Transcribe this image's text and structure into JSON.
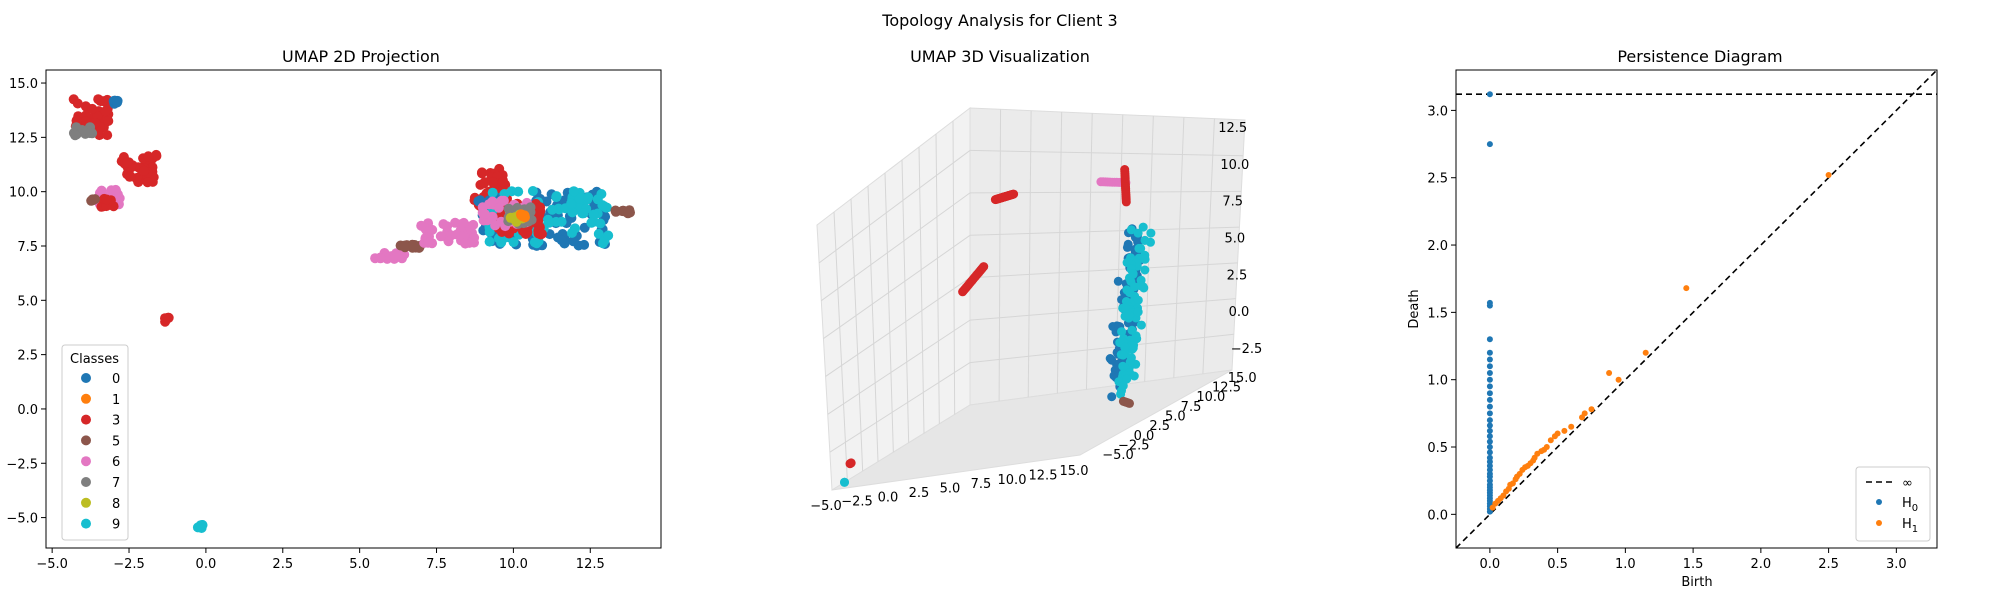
{
  "figure": {
    "suptitle": "Topology Analysis for Client 3"
  },
  "class_colors": {
    "0": "#1f77b4",
    "1": "#ff7f0e",
    "3": "#d62728",
    "5": "#8c564b",
    "6": "#e377c2",
    "7": "#7f7f7f",
    "8": "#bcbd22",
    "9": "#17becf"
  },
  "chart_data": [
    {
      "type": "scatter",
      "title": "UMAP 2D Projection",
      "xlabel": "",
      "ylabel": "",
      "xlim": [
        -5.2,
        14.8
      ],
      "ylim": [
        -6.4,
        15.6
      ],
      "xticks": [
        -5.0,
        -2.5,
        0.0,
        2.5,
        5.0,
        7.5,
        10.0,
        12.5
      ],
      "yticks": [
        -5.0,
        -2.5,
        0.0,
        2.5,
        5.0,
        7.5,
        10.0,
        12.5,
        15.0
      ],
      "grid": false,
      "legend": {
        "title": "Classes",
        "position": "lower-left",
        "entries": [
          "0",
          "1",
          "3",
          "5",
          "6",
          "7",
          "8",
          "9"
        ]
      },
      "clusters": [
        {
          "class": "3",
          "x": [
            -4.3,
            -3.1
          ],
          "y": [
            12.5,
            14.4
          ]
        },
        {
          "class": "7",
          "x": [
            -4.3,
            -3.7
          ],
          "y": [
            12.6,
            13.0
          ]
        },
        {
          "class": "0",
          "x": [
            -3.0,
            -2.8
          ],
          "y": [
            13.9,
            14.2
          ]
        },
        {
          "class": "3",
          "x": [
            -2.8,
            -1.6
          ],
          "y": [
            10.4,
            11.7
          ]
        },
        {
          "class": "6",
          "x": [
            -3.5,
            -2.8
          ],
          "y": [
            9.4,
            10.1
          ]
        },
        {
          "class": "3",
          "x": [
            -3.4,
            -3.0
          ],
          "y": [
            9.3,
            9.7
          ]
        },
        {
          "class": "5",
          "x": [
            -3.8,
            -3.6
          ],
          "y": [
            9.5,
            9.7
          ]
        },
        {
          "class": "3",
          "x": [
            -1.4,
            -1.2
          ],
          "y": [
            4.0,
            4.2
          ]
        },
        {
          "class": "9",
          "x": [
            -0.3,
            -0.1
          ],
          "y": [
            -5.5,
            -5.3
          ]
        },
        {
          "class": "6",
          "x": [
            5.5,
            6.5
          ],
          "y": [
            6.9,
            7.2
          ]
        },
        {
          "class": "5",
          "x": [
            6.3,
            7.0
          ],
          "y": [
            7.4,
            7.6
          ]
        },
        {
          "class": "6",
          "x": [
            7.0,
            8.8
          ],
          "y": [
            7.6,
            8.6
          ]
        },
        {
          "class": "3",
          "x": [
            8.7,
            9.8
          ],
          "y": [
            9.3,
            11.1
          ]
        },
        {
          "class": "0",
          "x": [
            8.8,
            13.0
          ],
          "y": [
            7.5,
            10.0
          ]
        },
        {
          "class": "9",
          "x": [
            9.2,
            13.2
          ],
          "y": [
            7.6,
            10.1
          ]
        },
        {
          "class": "5",
          "x": [
            13.3,
            13.8
          ],
          "y": [
            9.0,
            9.2
          ]
        },
        {
          "class": "3",
          "x": [
            9.5,
            11.0
          ],
          "y": [
            8.0,
            9.5
          ]
        },
        {
          "class": "6",
          "x": [
            9.0,
            10.5
          ],
          "y": [
            8.4,
            9.6
          ]
        },
        {
          "class": "7",
          "x": [
            9.8,
            10.6
          ],
          "y": [
            8.5,
            9.3
          ]
        },
        {
          "class": "8",
          "x": [
            9.9,
            10.3
          ],
          "y": [
            8.6,
            9.0
          ]
        },
        {
          "class": "1",
          "x": [
            10.2,
            10.4
          ],
          "y": [
            8.8,
            9.0
          ]
        }
      ]
    },
    {
      "type": "scatter",
      "title": "UMAP 3D Visualization",
      "projection": "3d",
      "xticks": [
        -5.0,
        -2.5,
        0.0,
        2.5,
        5.0,
        7.5,
        10.0,
        12.5,
        15.0
      ],
      "yticks": [
        -5.0,
        -2.5,
        0.0,
        2.5,
        5.0,
        7.5,
        10.0,
        12.5,
        15.0
      ],
      "zticks": [
        -2.5,
        0.0,
        2.5,
        5.0,
        7.5,
        10.0,
        12.5
      ],
      "xlim": [
        -5,
        15
      ],
      "ylim": [
        -6,
        16
      ],
      "zlim": [
        -4,
        14
      ],
      "grid": true
    },
    {
      "type": "scatter",
      "title": "Persistence Diagram",
      "xlabel": "Birth",
      "ylabel": "Death",
      "xlim": [
        -0.25,
        3.3
      ],
      "ylim": [
        -0.25,
        3.3
      ],
      "xticks": [
        0.0,
        0.5,
        1.0,
        1.5,
        2.0,
        2.5,
        3.0
      ],
      "yticks": [
        0.0,
        0.5,
        1.0,
        1.5,
        2.0,
        2.5,
        3.0
      ],
      "infinity_line": 3.12,
      "legend": {
        "position": "lower-right",
        "entries": [
          "∞",
          "H0",
          "H1"
        ]
      },
      "series": [
        {
          "name": "H0",
          "color": "#1f77b4",
          "points": [
            [
              0,
              0.02
            ],
            [
              0,
              0.04
            ],
            [
              0,
              0.06
            ],
            [
              0,
              0.08
            ],
            [
              0,
              0.1
            ],
            [
              0,
              0.12
            ],
            [
              0,
              0.14
            ],
            [
              0,
              0.16
            ],
            [
              0,
              0.18
            ],
            [
              0,
              0.2
            ],
            [
              0,
              0.22
            ],
            [
              0,
              0.25
            ],
            [
              0,
              0.28
            ],
            [
              0,
              0.3
            ],
            [
              0,
              0.33
            ],
            [
              0,
              0.36
            ],
            [
              0,
              0.39
            ],
            [
              0,
              0.42
            ],
            [
              0,
              0.46
            ],
            [
              0,
              0.5
            ],
            [
              0,
              0.54
            ],
            [
              0,
              0.58
            ],
            [
              0,
              0.62
            ],
            [
              0,
              0.66
            ],
            [
              0,
              0.7
            ],
            [
              0,
              0.75
            ],
            [
              0,
              0.8
            ],
            [
              0,
              0.85
            ],
            [
              0,
              0.9
            ],
            [
              0,
              0.95
            ],
            [
              0,
              1.0
            ],
            [
              0,
              1.05
            ],
            [
              0,
              1.1
            ],
            [
              0,
              1.15
            ],
            [
              0,
              1.2
            ],
            [
              0,
              1.3
            ],
            [
              0,
              1.55
            ],
            [
              0,
              1.57
            ],
            [
              0,
              2.75
            ],
            [
              0,
              3.12
            ]
          ]
        },
        {
          "name": "H1",
          "color": "#ff7f0e",
          "points": [
            [
              0.02,
              0.05
            ],
            [
              0.04,
              0.08
            ],
            [
              0.06,
              0.1
            ],
            [
              0.08,
              0.12
            ],
            [
              0.1,
              0.14
            ],
            [
              0.12,
              0.17
            ],
            [
              0.14,
              0.19
            ],
            [
              0.15,
              0.22
            ],
            [
              0.17,
              0.23
            ],
            [
              0.19,
              0.26
            ],
            [
              0.2,
              0.28
            ],
            [
              0.22,
              0.3
            ],
            [
              0.24,
              0.33
            ],
            [
              0.26,
              0.35
            ],
            [
              0.28,
              0.36
            ],
            [
              0.3,
              0.38
            ],
            [
              0.32,
              0.4
            ],
            [
              0.33,
              0.42
            ],
            [
              0.35,
              0.45
            ],
            [
              0.38,
              0.47
            ],
            [
              0.4,
              0.48
            ],
            [
              0.42,
              0.5
            ],
            [
              0.45,
              0.55
            ],
            [
              0.48,
              0.58
            ],
            [
              0.5,
              0.6
            ],
            [
              0.55,
              0.62
            ],
            [
              0.6,
              0.65
            ],
            [
              0.68,
              0.72
            ],
            [
              0.7,
              0.75
            ],
            [
              0.75,
              0.78
            ],
            [
              0.88,
              1.05
            ],
            [
              0.95,
              1.0
            ],
            [
              1.15,
              1.2
            ],
            [
              1.45,
              1.68
            ],
            [
              2.5,
              2.52
            ]
          ]
        }
      ]
    }
  ]
}
